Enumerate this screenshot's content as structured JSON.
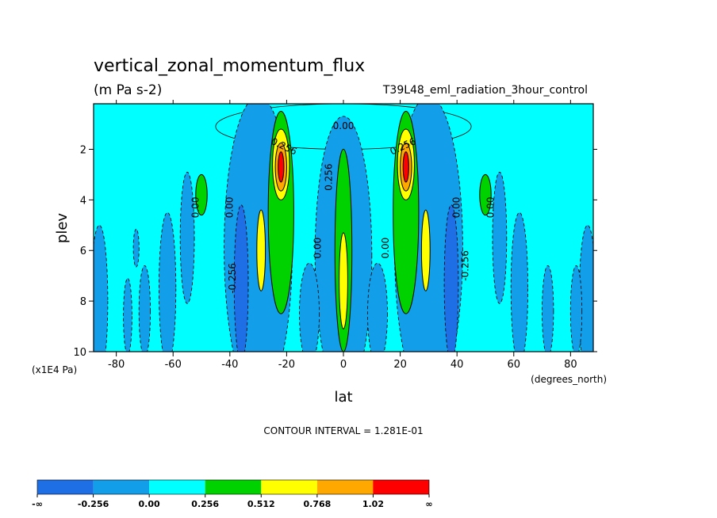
{
  "chart_data": {
    "type": "heatmap",
    "title": "vertical_zonal_momentum_flux",
    "units": "(m Pa s-2)",
    "run_label": "T39L48_eml_radiation_3hour_control",
    "xlabel": "lat",
    "xunits": "(degrees_north)",
    "ylabel": "plev",
    "yunits": "(x1E4 Pa)",
    "xlim": [
      -88,
      88
    ],
    "ylim": [
      0.2,
      10
    ],
    "y_inverted": true,
    "x_ticks": [
      -80,
      -60,
      -40,
      -20,
      0,
      20,
      40,
      60,
      80
    ],
    "x_tick_labels": [
      "-80",
      "-60",
      "-40",
      "-20",
      "0",
      "20",
      "40",
      "60",
      "80"
    ],
    "y_ticks": [
      2,
      4,
      6,
      8,
      10
    ],
    "y_tick_labels": [
      "2",
      "4",
      "6",
      "8",
      "10"
    ],
    "contour_interval": "CONTOUR INTERVAL = 1.281E-01",
    "colorbar": {
      "labels": [
        "-∞",
        "-0.256",
        "0.00",
        "0.256",
        "0.512",
        "0.768",
        "1.02",
        "∞"
      ],
      "colors": [
        "#1e6ee6",
        "#129ee8",
        "#00ffff",
        "#00d200",
        "#ffff00",
        "#ffa800",
        "#ff0000"
      ]
    },
    "contour_labels": [
      {
        "text": "0.00",
        "lat": 0,
        "plev": 1.1,
        "angle": 0
      },
      {
        "text": "0.256",
        "lat": -21,
        "plev": 1.9,
        "angle": 25
      },
      {
        "text": "0.256",
        "lat": 21,
        "plev": 1.9,
        "angle": -25
      },
      {
        "text": "0.256",
        "lat": -5,
        "plev": 3.1,
        "angle": -90
      },
      {
        "text": "0.00",
        "lat": -52,
        "plev": 4.3,
        "angle": -90
      },
      {
        "text": "0.00",
        "lat": -40,
        "plev": 4.3,
        "angle": -90
      },
      {
        "text": "0.00",
        "lat": 40,
        "plev": 4.3,
        "angle": -90
      },
      {
        "text": "0.00",
        "lat": 52,
        "plev": 4.3,
        "angle": -90
      },
      {
        "text": "0.00",
        "lat": -9,
        "plev": 5.9,
        "angle": -90
      },
      {
        "text": "0.00",
        "lat": 15,
        "plev": 5.9,
        "angle": -90
      },
      {
        "text": "-0.256",
        "lat": -39,
        "plev": 7.1,
        "angle": -90
      },
      {
        "text": "-0.256",
        "lat": 43,
        "plev": 6.6,
        "angle": -90
      }
    ],
    "features": [
      {
        "lat": 0,
        "plev": 1.1,
        "level": 2,
        "slat": 90,
        "splev": 1.8
      },
      {
        "lat": -55,
        "plev": 5.5,
        "level": 1,
        "slat": 5,
        "splev": 5.2
      },
      {
        "lat": 55,
        "plev": 5.5,
        "level": 1,
        "slat": 5,
        "splev": 5.2
      },
      {
        "lat": -86,
        "plev": 8.0,
        "level": 1,
        "slat": 6,
        "splev": 6.0
      },
      {
        "lat": 86,
        "plev": 8.0,
        "level": 1,
        "slat": 6,
        "splev": 6.0
      },
      {
        "lat": -30,
        "plev": 5.9,
        "level": 1,
        "slat": 24,
        "splev": 12.0
      },
      {
        "lat": 30,
        "plev": 5.9,
        "level": 1,
        "slat": 24,
        "splev": 12.0
      },
      {
        "lat": 0,
        "plev": 6.2,
        "level": 1,
        "slat": 20,
        "splev": 11.0
      },
      {
        "lat": -36,
        "plev": 7.3,
        "level": 0,
        "slat": 5,
        "splev": 6.2
      },
      {
        "lat": 38,
        "plev": 7.3,
        "level": 0,
        "slat": 5,
        "splev": 6.2
      },
      {
        "lat": -62,
        "plev": 7.5,
        "level": 1,
        "slat": 6,
        "splev": 6.0
      },
      {
        "lat": 62,
        "plev": 7.5,
        "level": 1,
        "slat": 6,
        "splev": 6.0
      },
      {
        "lat": -12,
        "plev": 8.5,
        "level": 1,
        "slat": 7,
        "splev": 4.0
      },
      {
        "lat": 12,
        "plev": 8.5,
        "level": 1,
        "slat": 7,
        "splev": 4.0
      },
      {
        "lat": -50,
        "plev": 3.8,
        "level": 3,
        "slat": 4,
        "splev": 1.6
      },
      {
        "lat": 50,
        "plev": 3.8,
        "level": 3,
        "slat": 4,
        "splev": 1.6
      },
      {
        "lat": -73,
        "plev": 5.9,
        "level": 1,
        "slat": 2,
        "splev": 1.5
      },
      {
        "lat": -76,
        "plev": 8.6,
        "level": 1,
        "slat": 3,
        "splev": 3.0
      },
      {
        "lat": -70,
        "plev": 8.4,
        "level": 1,
        "slat": 4,
        "splev": 3.6
      },
      {
        "lat": 72,
        "plev": 8.4,
        "level": 1,
        "slat": 4,
        "splev": 3.6
      },
      {
        "lat": 82,
        "plev": 8.4,
        "level": 1,
        "slat": 4,
        "splev": 3.6
      },
      {
        "lat": 0,
        "plev": 6.0,
        "level": 3,
        "slat": 6,
        "splev": 8.0
      },
      {
        "lat": -22,
        "plev": 4.5,
        "level": 3,
        "slat": 9,
        "splev": 8.0
      },
      {
        "lat": 22,
        "plev": 4.5,
        "level": 3,
        "slat": 9,
        "splev": 8.0
      },
      {
        "lat": 0,
        "plev": 7.2,
        "level": 4,
        "slat": 3,
        "splev": 3.8
      },
      {
        "lat": -29,
        "plev": 6.0,
        "level": 4,
        "slat": 3,
        "splev": 3.2
      },
      {
        "lat": 29,
        "plev": 6.0,
        "level": 4,
        "slat": 3,
        "splev": 3.2
      },
      {
        "lat": -22,
        "plev": 2.6,
        "level": 4,
        "slat": 6,
        "splev": 2.8
      },
      {
        "lat": 22,
        "plev": 2.6,
        "level": 4,
        "slat": 6,
        "splev": 2.8
      },
      {
        "lat": -22,
        "plev": 2.7,
        "level": 5,
        "slat": 4,
        "splev": 1.9
      },
      {
        "lat": 22,
        "plev": 2.7,
        "level": 5,
        "slat": 4,
        "splev": 1.9
      },
      {
        "lat": -22,
        "plev": 2.7,
        "level": 6,
        "slat": 2,
        "splev": 1.2
      },
      {
        "lat": 22,
        "plev": 2.7,
        "level": 6,
        "slat": 2,
        "splev": 1.2
      }
    ]
  }
}
